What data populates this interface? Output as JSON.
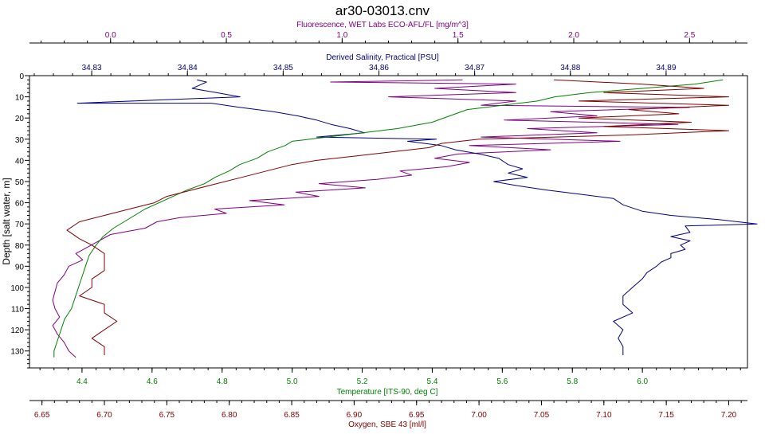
{
  "chart_data": {
    "type": "line",
    "title": "ar30-03013.cnv",
    "y_axis": {
      "label": "Depth [salt water, m]",
      "range": [
        0,
        138
      ],
      "inverted": true,
      "ticks": [
        0,
        10,
        20,
        30,
        40,
        50,
        60,
        70,
        80,
        90,
        100,
        110,
        120,
        130
      ]
    },
    "x_axes": [
      {
        "id": "fluorescence",
        "label": "Fluorescence, WET Labs ECO-AFL/FL [mg/m^3]",
        "position": "top",
        "color": "#800080",
        "range": [
          -0.35,
          2.75
        ],
        "ticks": [
          0.0,
          0.5,
          1.0,
          1.5,
          2.0,
          2.5
        ],
        "tick_labels": [
          "0.0",
          "0.5",
          "1.0",
          "1.5",
          "2.0",
          "2.5"
        ]
      },
      {
        "id": "salinity",
        "label": "Derived Salinity, Practical [PSU]",
        "position": "top",
        "color": "#000080",
        "range": [
          34.8235,
          34.8985
        ],
        "ticks": [
          34.83,
          34.84,
          34.85,
          34.86,
          34.87,
          34.88,
          34.89
        ],
        "tick_labels": [
          "34,83",
          "34,84",
          "34,85",
          "34,86",
          "34,87",
          "34,88",
          "34,89"
        ]
      },
      {
        "id": "temperature",
        "label": "Temperature [ITS-90, deg C]",
        "position": "bottom",
        "color": "#008000",
        "range": [
          4.25,
          6.3
        ],
        "ticks": [
          4.4,
          4.6,
          4.8,
          5.0,
          5.2,
          5.4,
          5.6,
          5.8,
          6.0
        ],
        "tick_labels": [
          "4.4",
          "4.6",
          "4.8",
          "5.0",
          "5.2",
          "5.4",
          "5.6",
          "5.8",
          "6.0"
        ]
      },
      {
        "id": "oxygen",
        "label": "Oxygen, SBE 43 [ml/l]",
        "position": "bottom",
        "color": "#800000",
        "range": [
          6.64,
          7.215
        ],
        "ticks": [
          6.65,
          6.7,
          6.75,
          6.8,
          6.85,
          6.9,
          6.95,
          7.0,
          7.05,
          7.1,
          7.15,
          7.2
        ],
        "tick_labels": [
          "6.65",
          "6.70",
          "6.75",
          "6.80",
          "6.85",
          "6.90",
          "6.95",
          "7.00",
          "7.05",
          "7.10",
          "7.15",
          "7.20"
        ]
      }
    ],
    "series": [
      {
        "axis": "fluorescence",
        "color": "#800080",
        "points": [
          [
            1.52,
            2
          ],
          [
            0.95,
            3
          ],
          [
            1.75,
            4
          ],
          [
            1.4,
            6
          ],
          [
            1.75,
            8
          ],
          [
            1.2,
            10
          ],
          [
            1.75,
            12
          ],
          [
            1.6,
            14
          ],
          [
            2.5,
            15
          ],
          [
            1.9,
            17
          ],
          [
            2.1,
            19
          ],
          [
            1.7,
            21
          ],
          [
            2.45,
            23
          ],
          [
            1.8,
            25
          ],
          [
            2.1,
            27
          ],
          [
            1.6,
            29
          ],
          [
            2.2,
            31
          ],
          [
            1.55,
            33
          ],
          [
            1.9,
            35
          ],
          [
            1.5,
            37
          ],
          [
            1.4,
            39
          ],
          [
            1.55,
            41
          ],
          [
            1.45,
            43
          ],
          [
            1.25,
            45
          ],
          [
            1.3,
            47
          ],
          [
            1.15,
            49
          ],
          [
            0.9,
            51
          ],
          [
            1.1,
            53
          ],
          [
            0.8,
            55
          ],
          [
            0.9,
            57
          ],
          [
            0.6,
            59
          ],
          [
            0.75,
            61
          ],
          [
            0.45,
            63
          ],
          [
            0.5,
            65
          ],
          [
            0.3,
            67
          ],
          [
            0.2,
            69
          ],
          [
            0.15,
            72
          ],
          [
            0.0,
            75
          ],
          [
            -0.05,
            78
          ],
          [
            -0.1,
            81
          ],
          [
            -0.15,
            84
          ],
          [
            -0.12,
            87
          ],
          [
            -0.18,
            90
          ],
          [
            -0.2,
            94
          ],
          [
            -0.23,
            98
          ],
          [
            -0.24,
            102
          ],
          [
            -0.25,
            106
          ],
          [
            -0.24,
            110
          ],
          [
            -0.22,
            114
          ],
          [
            -0.25,
            118
          ],
          [
            -0.23,
            122
          ],
          [
            -0.2,
            126
          ],
          [
            -0.18,
            130
          ],
          [
            -0.15,
            133
          ]
        ]
      },
      {
        "axis": "salinity",
        "color": "#000080",
        "points": [
          [
            34.841,
            2
          ],
          [
            34.842,
            3
          ],
          [
            34.8405,
            6
          ],
          [
            34.843,
            8
          ],
          [
            34.8455,
            10
          ],
          [
            34.8285,
            13
          ],
          [
            34.8425,
            13
          ],
          [
            34.8455,
            15
          ],
          [
            34.849,
            17
          ],
          [
            34.8515,
            19
          ],
          [
            34.8535,
            21
          ],
          [
            34.855,
            23
          ],
          [
            34.857,
            25
          ],
          [
            34.8585,
            27
          ],
          [
            34.8535,
            29
          ],
          [
            34.866,
            30
          ],
          [
            34.863,
            31
          ],
          [
            34.8665,
            33
          ],
          [
            34.868,
            35
          ],
          [
            34.8705,
            37
          ],
          [
            34.8725,
            39
          ],
          [
            34.8735,
            42
          ],
          [
            34.875,
            44
          ],
          [
            34.8735,
            46
          ],
          [
            34.8755,
            48
          ],
          [
            34.872,
            50
          ],
          [
            34.8745,
            52
          ],
          [
            34.8775,
            54
          ],
          [
            34.881,
            56
          ],
          [
            34.8845,
            58
          ],
          [
            34.8855,
            61
          ],
          [
            34.8875,
            64
          ],
          [
            34.8905,
            66
          ],
          [
            34.8955,
            68
          ],
          [
            34.8995,
            70
          ],
          [
            34.892,
            71
          ],
          [
            34.8925,
            74
          ],
          [
            34.8905,
            76
          ],
          [
            34.8925,
            78
          ],
          [
            34.8915,
            80
          ],
          [
            34.892,
            82
          ],
          [
            34.8905,
            84
          ],
          [
            34.8905,
            86
          ],
          [
            34.8895,
            88
          ],
          [
            34.889,
            90
          ],
          [
            34.888,
            93
          ],
          [
            34.8875,
            96
          ],
          [
            34.8865,
            100
          ],
          [
            34.8855,
            104
          ],
          [
            34.8855,
            108
          ],
          [
            34.8865,
            112
          ],
          [
            34.8845,
            116
          ],
          [
            34.8855,
            120
          ],
          [
            34.885,
            124
          ],
          [
            34.8855,
            128
          ],
          [
            34.8855,
            132
          ]
        ]
      },
      {
        "axis": "temperature",
        "color": "#008000",
        "points": [
          [
            6.23,
            2
          ],
          [
            6.15,
            4
          ],
          [
            6.0,
            6
          ],
          [
            5.85,
            8
          ],
          [
            5.75,
            10
          ],
          [
            5.7,
            12
          ],
          [
            5.6,
            14
          ],
          [
            5.5,
            16
          ],
          [
            5.45,
            19
          ],
          [
            5.4,
            22
          ],
          [
            5.3,
            25
          ],
          [
            5.15,
            28
          ],
          [
            5.05,
            30
          ],
          [
            5.0,
            31
          ],
          [
            4.98,
            33
          ],
          [
            4.93,
            36
          ],
          [
            4.9,
            39
          ],
          [
            4.85,
            42
          ],
          [
            4.82,
            45
          ],
          [
            4.78,
            48
          ],
          [
            4.75,
            51
          ],
          [
            4.7,
            54
          ],
          [
            4.66,
            57
          ],
          [
            4.62,
            60
          ],
          [
            4.58,
            63
          ],
          [
            4.55,
            66
          ],
          [
            4.52,
            69
          ],
          [
            4.49,
            72
          ],
          [
            4.46,
            76
          ],
          [
            4.44,
            80
          ],
          [
            4.42,
            85
          ],
          [
            4.41,
            90
          ],
          [
            4.4,
            95
          ],
          [
            4.39,
            100
          ],
          [
            4.38,
            105
          ],
          [
            4.37,
            110
          ],
          [
            4.35,
            115
          ],
          [
            4.34,
            120
          ],
          [
            4.33,
            125
          ],
          [
            4.32,
            130
          ],
          [
            4.32,
            133
          ]
        ]
      },
      {
        "axis": "oxygen",
        "color": "#800000",
        "points": [
          [
            7.06,
            2
          ],
          [
            7.13,
            4
          ],
          [
            7.18,
            6
          ],
          [
            7.1,
            8
          ],
          [
            7.2,
            10
          ],
          [
            7.08,
            12
          ],
          [
            7.2,
            14
          ],
          [
            7.12,
            16
          ],
          [
            7.16,
            18
          ],
          [
            7.08,
            20
          ],
          [
            7.17,
            22
          ],
          [
            7.1,
            24
          ],
          [
            7.2,
            26
          ],
          [
            7.12,
            28
          ],
          [
            7.0,
            30
          ],
          [
            6.97,
            32
          ],
          [
            6.96,
            34
          ],
          [
            6.93,
            36
          ],
          [
            6.9,
            38
          ],
          [
            6.87,
            40
          ],
          [
            6.85,
            42
          ],
          [
            6.83,
            45
          ],
          [
            6.81,
            48
          ],
          [
            6.79,
            51
          ],
          [
            6.77,
            54
          ],
          [
            6.75,
            57
          ],
          [
            6.74,
            60
          ],
          [
            6.72,
            63
          ],
          [
            6.7,
            66
          ],
          [
            6.68,
            69
          ],
          [
            6.67,
            73
          ],
          [
            6.68,
            77
          ],
          [
            6.69,
            80
          ],
          [
            6.7,
            84
          ],
          [
            6.7,
            88
          ],
          [
            6.7,
            92
          ],
          [
            6.69,
            96
          ],
          [
            6.69,
            100
          ],
          [
            6.68,
            104
          ],
          [
            6.7,
            108
          ],
          [
            6.7,
            112
          ],
          [
            6.71,
            116
          ],
          [
            6.7,
            120
          ],
          [
            6.69,
            124
          ],
          [
            6.7,
            128
          ],
          [
            6.7,
            132
          ]
        ]
      }
    ]
  }
}
